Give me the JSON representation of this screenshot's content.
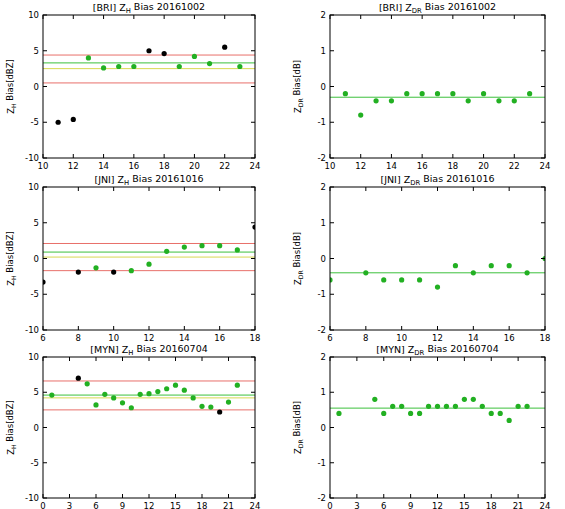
{
  "chart_data": [
    {
      "type": "scatter",
      "title": "[BRI] ZH Bias 20161002",
      "y_label": "ZH Bias[dBZ]",
      "x": [
        11,
        12,
        13,
        14,
        15,
        16,
        17,
        18,
        19,
        20,
        21,
        22,
        23
      ],
      "values": [
        -5.0,
        -4.6,
        4.0,
        2.6,
        2.8,
        2.8,
        5.0,
        4.6,
        2.8,
        4.2,
        3.2,
        5.5,
        2.8
      ],
      "colors": [
        "#000000",
        "#000000",
        "#22b022",
        "#22b022",
        "#22b022",
        "#22b022",
        "#000000",
        "#000000",
        "#22b022",
        "#22b022",
        "#22b022",
        "#000000",
        "#22b022"
      ],
      "xlim": [
        10,
        24
      ],
      "xticks": [
        10,
        12,
        14,
        16,
        18,
        20,
        22,
        24
      ],
      "ylim": [
        -10,
        10
      ],
      "yticks": [
        -10,
        -5,
        0,
        5,
        10
      ],
      "reference_lines": [
        {
          "value": 4.4,
          "color": "#e8706a"
        },
        {
          "value": 3.3,
          "color": "#3cc03c"
        },
        {
          "value": 2.5,
          "color": "#d8d850"
        },
        {
          "value": 0.5,
          "color": "#e8706a"
        }
      ]
    },
    {
      "type": "scatter",
      "title": "[BRI] ZDR Bias 20161002",
      "y_label": "ZDR Bias[dB]",
      "x": [
        11,
        12,
        13,
        14,
        15,
        16,
        17,
        18,
        19,
        20,
        21,
        22,
        23
      ],
      "values": [
        -0.2,
        -0.8,
        -0.4,
        -0.4,
        -0.2,
        -0.2,
        -0.2,
        -0.2,
        -0.4,
        -0.2,
        -0.4,
        -0.4,
        -0.2
      ],
      "colors": [
        "#22b022",
        "#22b022",
        "#22b022",
        "#22b022",
        "#22b022",
        "#22b022",
        "#22b022",
        "#22b022",
        "#22b022",
        "#22b022",
        "#22b022",
        "#22b022",
        "#22b022"
      ],
      "xlim": [
        10,
        24
      ],
      "xticks": [
        10,
        12,
        14,
        16,
        18,
        20,
        22,
        24
      ],
      "ylim": [
        -2,
        2
      ],
      "yticks": [
        -2,
        -1,
        0,
        1,
        2
      ],
      "reference_lines": [
        {
          "value": -0.3,
          "color": "#3cc03c"
        }
      ]
    },
    {
      "type": "scatter",
      "title": "[JNI] ZH Bias 20161016",
      "y_label": "ZH Bias[dBZ]",
      "x": [
        6,
        8,
        9,
        10,
        11,
        12,
        13,
        14,
        15,
        16,
        17,
        18
      ],
      "values": [
        -3.3,
        -1.9,
        -1.3,
        -1.9,
        -1.7,
        -0.8,
        1.0,
        1.6,
        1.8,
        1.8,
        1.2,
        4.4
      ],
      "colors": [
        "#000000",
        "#000000",
        "#22b022",
        "#000000",
        "#22b022",
        "#22b022",
        "#22b022",
        "#22b022",
        "#22b022",
        "#22b022",
        "#22b022",
        "#000000"
      ],
      "xlim": [
        6,
        18
      ],
      "xticks": [
        6,
        8,
        10,
        12,
        14,
        16,
        18
      ],
      "ylim": [
        -10,
        10
      ],
      "yticks": [
        -10,
        -5,
        0,
        5,
        10
      ],
      "reference_lines": [
        {
          "value": 2.1,
          "color": "#e8706a"
        },
        {
          "value": 0.9,
          "color": "#3cc03c"
        },
        {
          "value": 0.2,
          "color": "#d8d850"
        },
        {
          "value": -1.7,
          "color": "#e8706a"
        }
      ]
    },
    {
      "type": "scatter",
      "title": "[JNI] ZDR Bias 20161016",
      "y_label": "ZDR Bias[dB]",
      "x": [
        6,
        8,
        9,
        10,
        11,
        12,
        13,
        14,
        15,
        16,
        17,
        18
      ],
      "values": [
        -0.6,
        -0.4,
        -0.6,
        -0.6,
        -0.6,
        -0.8,
        -0.2,
        -0.4,
        -0.2,
        -0.2,
        -0.4,
        0.0
      ],
      "colors": [
        "#22b022",
        "#22b022",
        "#22b022",
        "#22b022",
        "#22b022",
        "#22b022",
        "#22b022",
        "#22b022",
        "#22b022",
        "#22b022",
        "#22b022",
        "#22b022"
      ],
      "xlim": [
        6,
        18
      ],
      "xticks": [
        6,
        8,
        10,
        12,
        14,
        16,
        18
      ],
      "ylim": [
        -2,
        2
      ],
      "yticks": [
        -2,
        -1,
        0,
        1,
        2
      ],
      "reference_lines": [
        {
          "value": -0.4,
          "color": "#3cc03c"
        }
      ]
    },
    {
      "type": "scatter",
      "title": "[MYN] ZH Bias 20160704",
      "y_label": "ZH Bias[dBZ]",
      "x": [
        1,
        4,
        5,
        6,
        7,
        8,
        9,
        10,
        11,
        12,
        13,
        14,
        15,
        16,
        17,
        18,
        19,
        20,
        21,
        22
      ],
      "values": [
        4.6,
        7.0,
        6.2,
        3.2,
        4.7,
        4.2,
        3.5,
        2.8,
        4.7,
        4.8,
        5.1,
        5.5,
        6.0,
        5.3,
        4.2,
        3.0,
        2.9,
        2.2,
        3.6,
        6.0
      ],
      "colors": [
        "#22b022",
        "#000000",
        "#22b022",
        "#22b022",
        "#22b022",
        "#22b022",
        "#22b022",
        "#22b022",
        "#22b022",
        "#22b022",
        "#22b022",
        "#22b022",
        "#22b022",
        "#22b022",
        "#22b022",
        "#22b022",
        "#22b022",
        "#000000",
        "#22b022",
        "#22b022"
      ],
      "xlim": [
        0,
        24
      ],
      "xticks": [
        0,
        3,
        6,
        9,
        12,
        15,
        18,
        21,
        24
      ],
      "ylim": [
        -10,
        10
      ],
      "yticks": [
        -10,
        -5,
        0,
        5,
        10
      ],
      "reference_lines": [
        {
          "value": 6.6,
          "color": "#e8706a"
        },
        {
          "value": 4.6,
          "color": "#3cc03c"
        },
        {
          "value": 4.2,
          "color": "#d8d850"
        },
        {
          "value": 2.5,
          "color": "#e8706a"
        }
      ]
    },
    {
      "type": "scatter",
      "title": "[MYN] ZDR Bias 20160704",
      "y_label": "ZDR Bias[dB]",
      "x": [
        1,
        5,
        6,
        7,
        8,
        9,
        10,
        11,
        12,
        13,
        14,
        15,
        16,
        17,
        18,
        19,
        20,
        21,
        22
      ],
      "values": [
        0.4,
        0.8,
        0.4,
        0.6,
        0.6,
        0.4,
        0.4,
        0.6,
        0.6,
        0.6,
        0.6,
        0.8,
        0.8,
        0.6,
        0.4,
        0.4,
        0.2,
        0.6,
        0.6
      ],
      "colors": [
        "#22b022",
        "#22b022",
        "#22b022",
        "#22b022",
        "#22b022",
        "#22b022",
        "#22b022",
        "#22b022",
        "#22b022",
        "#22b022",
        "#22b022",
        "#22b022",
        "#22b022",
        "#22b022",
        "#22b022",
        "#22b022",
        "#22b022",
        "#22b022",
        "#22b022"
      ],
      "xlim": [
        0,
        24
      ],
      "xticks": [
        0,
        3,
        6,
        9,
        12,
        15,
        18,
        21,
        24
      ],
      "ylim": [
        -2,
        2
      ],
      "yticks": [
        -2,
        -1,
        0,
        1,
        2
      ],
      "reference_lines": [
        {
          "value": 0.55,
          "color": "#3cc03c"
        }
      ]
    }
  ]
}
